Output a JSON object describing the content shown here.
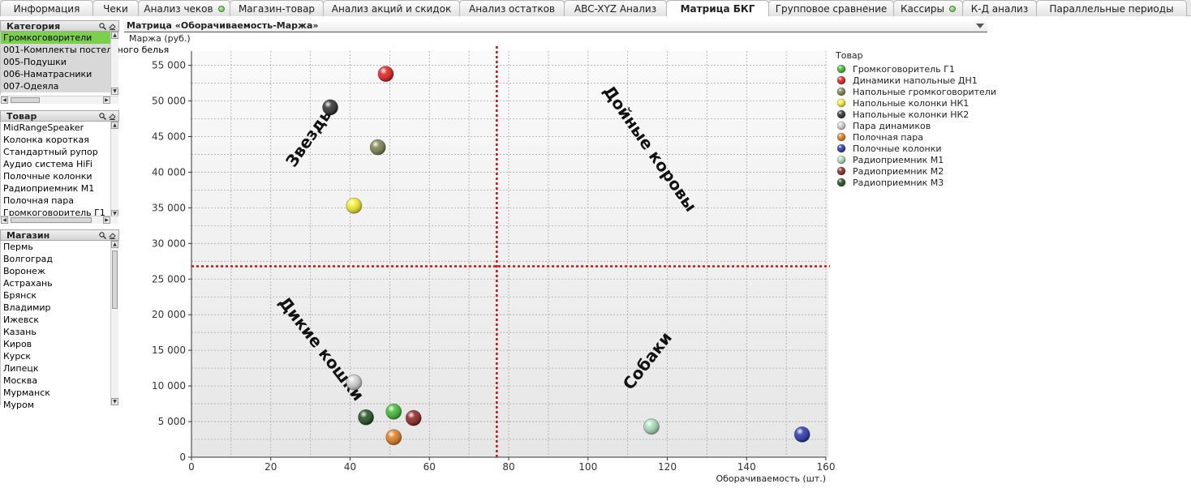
{
  "tabs": [
    {
      "label": "Информация",
      "dot": false,
      "active": false
    },
    {
      "label": "Чеки",
      "dot": false,
      "active": false
    },
    {
      "label": "Анализ чеков",
      "dot": true,
      "active": false
    },
    {
      "label": "Магазин-товар",
      "dot": false,
      "active": false
    },
    {
      "label": "Анализ акций и скидок",
      "dot": false,
      "active": false
    },
    {
      "label": "Анализ остатков",
      "dot": false,
      "active": false
    },
    {
      "label": "ABC-XYZ Анализ",
      "dot": false,
      "active": false
    },
    {
      "label": "Матрица БКГ",
      "dot": false,
      "active": true
    },
    {
      "label": "Групповое сравнение",
      "dot": false,
      "active": false
    },
    {
      "label": "Кассиры",
      "dot": true,
      "active": false
    },
    {
      "label": "К-Д анализ",
      "dot": false,
      "active": false
    },
    {
      "label": "Параллельные периоды",
      "dot": false,
      "active": false
    }
  ],
  "listboxes": {
    "category": {
      "title": "Категория",
      "items": [
        "Громкоговорители",
        "001-Комплекты постельного белья",
        "005-Подушки",
        "006-Наматрасники",
        "007-Одеяла"
      ],
      "selected": 0
    },
    "product": {
      "title": "Товар",
      "items": [
        "MidRangeSpeaker",
        "Колонка короткая",
        "Стандартный рупор",
        "Аудио система HiFi",
        "Полочные колонки",
        "Радиоприемник М1",
        "Полочная пара",
        "Громкоговоритель Г1"
      ]
    },
    "store": {
      "title": "Магазин",
      "items": [
        "Пермь",
        "Волгоград",
        "Воронеж",
        "Астрахань",
        "Брянск",
        "Владимир",
        "Ижевск",
        "Казань",
        "Киров",
        "Курск",
        "Липецк",
        "Москва",
        "Мурманск",
        "Муром"
      ]
    }
  },
  "icons": {
    "search": "search-icon",
    "clear": "clear-selection-icon"
  },
  "chart_title": "Матрица «Оборачиваемость-Маржа»",
  "chart_data": {
    "type": "scatter",
    "xlabel": "Оборачиваемость (шт.)",
    "ylabel": "Маржа (руб.)",
    "xlim": [
      0,
      160
    ],
    "ylim": [
      0,
      57000
    ],
    "xticks": [
      "0",
      "20",
      "40",
      "60",
      "80",
      "100",
      "120",
      "140",
      "160"
    ],
    "yticks": [
      "0",
      "5 000",
      "10 000",
      "15 000",
      "20 000",
      "25 000",
      "30 000",
      "35 000",
      "40 000",
      "45 000",
      "50 000",
      "55 000"
    ],
    "grid": true,
    "legend_title": "Товар",
    "legend_position": "right",
    "series": [
      {
        "name": "Громкоговоритель Г1",
        "color": "#3cb82e",
        "x": 51,
        "y": 6400
      },
      {
        "name": "Динамики напольные ДН1",
        "color": "#e01818",
        "x": 49,
        "y": 53800
      },
      {
        "name": "Напольные громкоговорители",
        "color": "#7a7f4c",
        "x": 47,
        "y": 43500
      },
      {
        "name": "Напольные колонки НК1",
        "color": "#f2ee22",
        "x": 41,
        "y": 35300
      },
      {
        "name": "Напольные колонки НК2",
        "color": "#2a2a2a",
        "x": 35,
        "y": 49100
      },
      {
        "name": "Пара динамиков",
        "color": "#d0d0d0",
        "x": 41,
        "y": 10500
      },
      {
        "name": "Полочная пара",
        "color": "#e07a18",
        "x": 51,
        "y": 2800
      },
      {
        "name": "Полочные колонки",
        "color": "#2233a8",
        "x": 154,
        "y": 3200
      },
      {
        "name": "Радиоприемник М1",
        "color": "#a8dcb8",
        "x": 116,
        "y": 4300
      },
      {
        "name": "Радиоприемник М2",
        "color": "#8a1e1e",
        "x": 56,
        "y": 5500
      },
      {
        "name": "Радиоприемник М3",
        "color": "#1a4a1a",
        "x": 44,
        "y": 5600
      }
    ],
    "threshold_lines": {
      "x": 77,
      "y": 26800,
      "color": "#cc1111"
    },
    "quadrant_labels": [
      "Звезды",
      "Дойные коровы",
      "Дикие кошки",
      "Собаки"
    ]
  }
}
